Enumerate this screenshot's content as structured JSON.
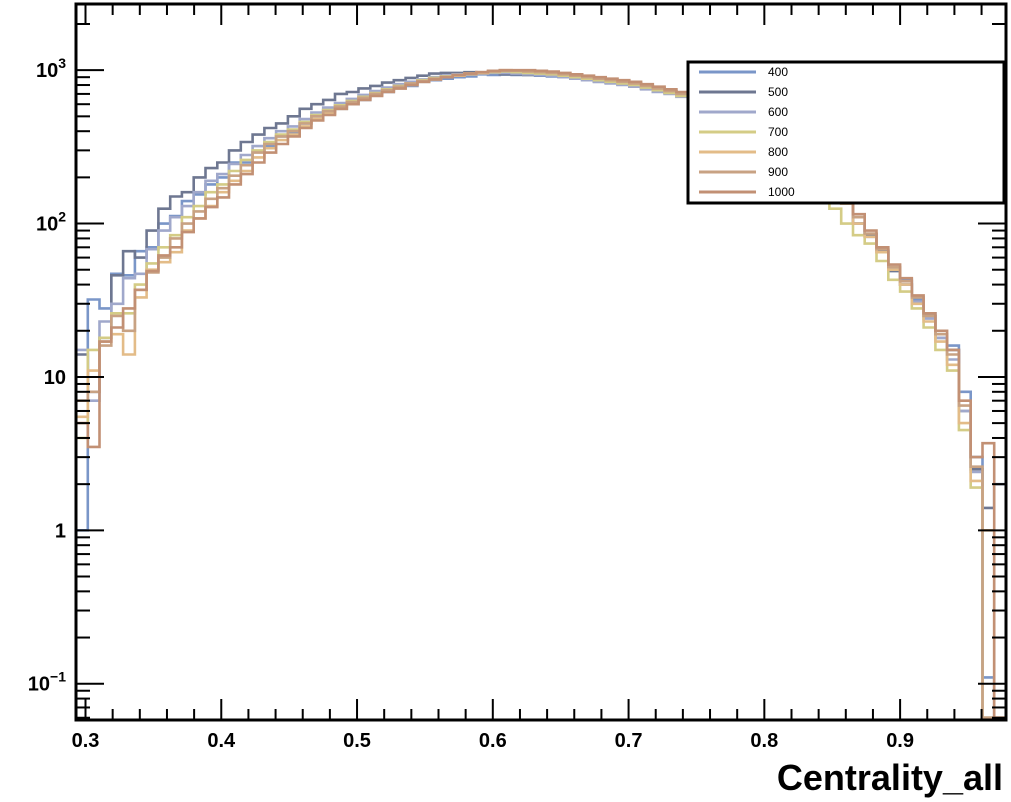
{
  "chart_data": {
    "type": "line",
    "style": "step-histogram",
    "xlabel": "Centrality_all",
    "ylabel": "",
    "xlim": [
      0.293,
      0.978
    ],
    "ylim": [
      0.058,
      2700
    ],
    "yscale": "log",
    "x_ticks": [
      "0.3",
      "0.4",
      "0.5",
      "0.6",
      "0.7",
      "0.8",
      "0.9"
    ],
    "y_ticks": [
      {
        "value": 0.1,
        "base": "10",
        "exp": "−1"
      },
      {
        "value": 1,
        "base": "1",
        "exp": ""
      },
      {
        "value": 10,
        "base": "10",
        "exp": ""
      },
      {
        "value": 100,
        "base": "10",
        "exp": "2"
      },
      {
        "value": 1000,
        "base": "10",
        "exp": "3"
      }
    ],
    "legend_position": "top-right",
    "series": [
      {
        "name": "400",
        "color": "#7a96c8",
        "values": [
          1,
          32,
          28,
          47,
          46,
          66,
          70,
          100,
          112,
          140,
          155,
          180,
          200,
          250,
          250,
          295,
          320,
          370,
          390,
          450,
          500,
          550,
          560,
          600,
          640,
          700,
          720,
          760,
          790,
          840,
          860,
          880,
          900,
          910,
          940,
          930,
          935,
          930,
          930,
          920,
          910,
          900,
          880,
          870,
          850,
          830,
          810,
          790,
          760,
          740,
          720,
          700,
          680,
          640,
          600,
          560,
          520,
          490,
          460,
          420,
          360,
          310,
          260,
          215,
          165,
          140,
          100,
          85,
          67,
          51,
          43,
          32,
          26,
          18,
          16,
          8,
          3,
          0.11,
          0
        ]
      },
      {
        "name": "500",
        "color": "#6e7791",
        "values": [
          14,
          8,
          18,
          46,
          66,
          60,
          90,
          125,
          150,
          160,
          200,
          230,
          250,
          300,
          340,
          380,
          420,
          450,
          500,
          560,
          600,
          640,
          700,
          720,
          760,
          790,
          830,
          860,
          890,
          920,
          950,
          960,
          960,
          970,
          950,
          960,
          940,
          940,
          930,
          930,
          920,
          900,
          880,
          860,
          840,
          830,
          810,
          790,
          760,
          740,
          710,
          690,
          660,
          620,
          570,
          530,
          500,
          460,
          420,
          380,
          330,
          285,
          245,
          205,
          165,
          140,
          100,
          85,
          66,
          49,
          40,
          31,
          25,
          18,
          15,
          6,
          2.5,
          1.4,
          2
        ]
      },
      {
        "name": "600",
        "color": "#a0a8cb",
        "values": [
          15,
          7,
          23,
          30,
          44,
          47,
          68,
          90,
          110,
          130,
          160,
          190,
          210,
          245,
          280,
          320,
          360,
          400,
          430,
          480,
          530,
          570,
          610,
          650,
          690,
          730,
          770,
          810,
          840,
          870,
          900,
          920,
          940,
          950,
          950,
          960,
          960,
          950,
          940,
          930,
          920,
          900,
          880,
          860,
          840,
          820,
          800,
          780,
          750,
          720,
          700,
          670,
          640,
          610,
          570,
          530,
          490,
          450,
          410,
          370,
          320,
          280,
          240,
          200,
          165,
          135,
          100,
          82,
          65,
          50,
          40,
          31,
          24,
          18,
          13,
          6,
          2.4,
          0.06,
          0
        ]
      },
      {
        "name": "700",
        "color": "#d4cc86",
        "values": [
          4,
          15,
          18,
          26,
          26,
          40,
          55,
          70,
          84,
          110,
          130,
          160,
          180,
          220,
          260,
          300,
          340,
          380,
          410,
          460,
          510,
          550,
          590,
          630,
          670,
          710,
          750,
          790,
          820,
          860,
          890,
          910,
          930,
          950,
          960,
          970,
          980,
          970,
          960,
          950,
          940,
          920,
          900,
          880,
          860,
          840,
          820,
          800,
          770,
          740,
          710,
          680,
          650,
          610,
          570,
          530,
          490,
          440,
          400,
          360,
          310,
          260,
          220,
          165,
          125,
          100,
          84,
          74,
          57,
          43,
          36,
          28,
          21,
          15,
          11,
          4.5,
          1.9,
          0.06,
          0
        ]
      },
      {
        "name": "800",
        "color": "#e3bc88",
        "values": [
          5.5,
          11,
          17,
          19,
          14,
          33,
          50,
          56,
          65,
          90,
          108,
          130,
          160,
          190,
          220,
          270,
          310,
          350,
          380,
          430,
          480,
          520,
          560,
          610,
          650,
          690,
          730,
          760,
          800,
          840,
          870,
          900,
          920,
          940,
          960,
          980,
          1000,
          990,
          980,
          970,
          960,
          940,
          920,
          900,
          880,
          860,
          840,
          820,
          790,
          760,
          730,
          700,
          670,
          630,
          590,
          550,
          510,
          470,
          430,
          380,
          330,
          285,
          240,
          200,
          165,
          135,
          100,
          82,
          65,
          50,
          40,
          30,
          23,
          17,
          12,
          5,
          2.1,
          1,
          0.06
        ]
      },
      {
        "name": "900",
        "color": "#c8a283",
        "values": [
          7,
          8,
          16,
          25,
          20,
          37,
          48,
          60,
          80,
          100,
          120,
          145,
          170,
          205,
          240,
          290,
          330,
          370,
          400,
          450,
          500,
          540,
          580,
          620,
          660,
          700,
          740,
          780,
          820,
          850,
          880,
          900,
          930,
          950,
          970,
          980,
          990,
          990,
          980,
          970,
          960,
          940,
          920,
          900,
          880,
          860,
          840,
          820,
          790,
          760,
          730,
          700,
          670,
          630,
          590,
          550,
          510,
          470,
          430,
          390,
          340,
          295,
          250,
          210,
          170,
          140,
          110,
          86,
          68,
          52,
          42,
          33,
          25,
          19,
          14,
          6.5,
          2.6,
          0.06,
          0
        ]
      },
      {
        "name": "1000",
        "color": "#c29074",
        "values": [
          5,
          3.5,
          17,
          21,
          28,
          37,
          49,
          62,
          70,
          88,
          108,
          128,
          148,
          180,
          210,
          250,
          290,
          330,
          370,
          420,
          470,
          510,
          560,
          600,
          640,
          680,
          720,
          760,
          800,
          840,
          870,
          900,
          930,
          950,
          970,
          990,
          1000,
          1000,
          1000,
          990,
          980,
          960,
          940,
          920,
          900,
          880,
          860,
          840,
          810,
          780,
          750,
          720,
          690,
          650,
          610,
          570,
          530,
          490,
          450,
          410,
          360,
          310,
          265,
          220,
          180,
          145,
          115,
          90,
          70,
          54,
          44,
          34,
          26,
          20,
          15,
          7,
          3,
          3.7,
          0.06
        ]
      }
    ]
  }
}
